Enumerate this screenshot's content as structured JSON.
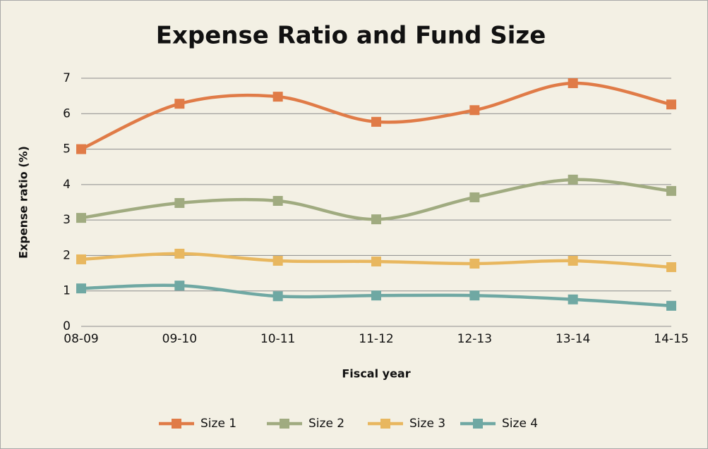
{
  "chart_data": {
    "type": "line",
    "title": "Expense Ratio and Fund Size",
    "x_label": "Fiscal year",
    "y_label": "Expense ratio (%)",
    "categories": [
      "08-09",
      "09-10",
      "10-11",
      "11-12",
      "12-13",
      "13-14",
      "14-15"
    ],
    "series": [
      {
        "name": "Size 1",
        "color": "#e07b47",
        "values": [
          5.0,
          6.28,
          6.48,
          5.77,
          6.1,
          6.86,
          6.26
        ]
      },
      {
        "name": "Size 2",
        "color": "#a0ab80",
        "values": [
          3.06,
          3.48,
          3.54,
          3.02,
          3.64,
          4.14,
          3.82
        ]
      },
      {
        "name": "Size 3",
        "color": "#e8b75f",
        "values": [
          1.89,
          2.05,
          1.85,
          1.83,
          1.77,
          1.85,
          1.67
        ]
      },
      {
        "name": "Size 4",
        "color": "#6fa8a3",
        "values": [
          1.07,
          1.15,
          0.85,
          0.87,
          0.87,
          0.76,
          0.58
        ]
      }
    ],
    "ylim": [
      0,
      7
    ],
    "yticks": [
      0,
      1,
      2,
      3,
      4,
      5,
      6,
      7
    ],
    "grid": true,
    "smooth": true,
    "legend": "bottom"
  }
}
